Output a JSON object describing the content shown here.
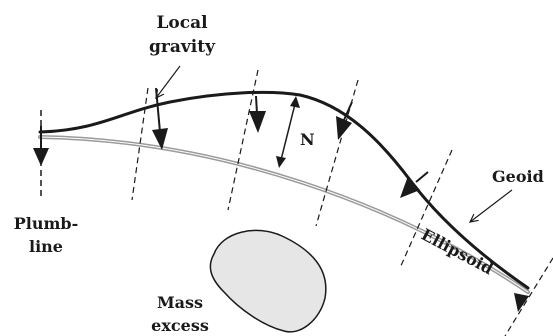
{
  "labels": {
    "local_gravity_line1": "Local",
    "local_gravity_line2": "gravity",
    "n": "N",
    "geoid": "Geoid",
    "plumb_line1": "Plumb-",
    "plumb_line2": "line",
    "ellipsoid": "Ellipsoid",
    "mass_line1": "Mass",
    "mass_line2": "excess"
  },
  "colors": {
    "geoid": "#1a1a1a",
    "ellipsoid": "#9a9a9a",
    "mass_fill": "#e6e6e6",
    "ink": "#1a1a1a"
  }
}
